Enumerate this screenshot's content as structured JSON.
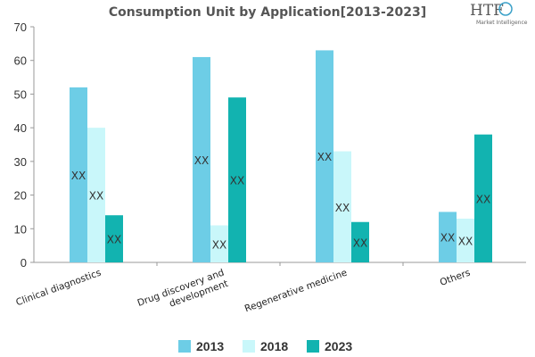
{
  "chart_data": {
    "type": "bar",
    "title": "Consumption Unit by  Application[2013-2023]",
    "xlabel": "",
    "ylabel": "",
    "categories": [
      "Clinical diagnostics",
      "Drug discovery and development",
      "Regenerative medicine",
      "Others"
    ],
    "category_lines": [
      [
        "Clinical diagnostics"
      ],
      [
        "Drug discovery and",
        "development"
      ],
      [
        "Regenerative medicine"
      ],
      [
        "Others"
      ]
    ],
    "series": [
      {
        "name": "2013",
        "color": "#6dcde6",
        "values": [
          52,
          61,
          63,
          15
        ]
      },
      {
        "name": "2018",
        "color": "#c9f7fa",
        "values": [
          40,
          11,
          33,
          13
        ]
      },
      {
        "name": "2023",
        "color": "#12b3b0",
        "values": [
          14,
          49,
          12,
          38
        ]
      }
    ],
    "data_label": "XX",
    "ylim": [
      0,
      70
    ],
    "yticks": [
      0,
      10,
      20,
      30,
      40,
      50,
      60,
      70
    ],
    "grid": false,
    "legend": "bottom"
  },
  "logo": {
    "text": "HTF",
    "subtext": "Market Intelligence"
  }
}
